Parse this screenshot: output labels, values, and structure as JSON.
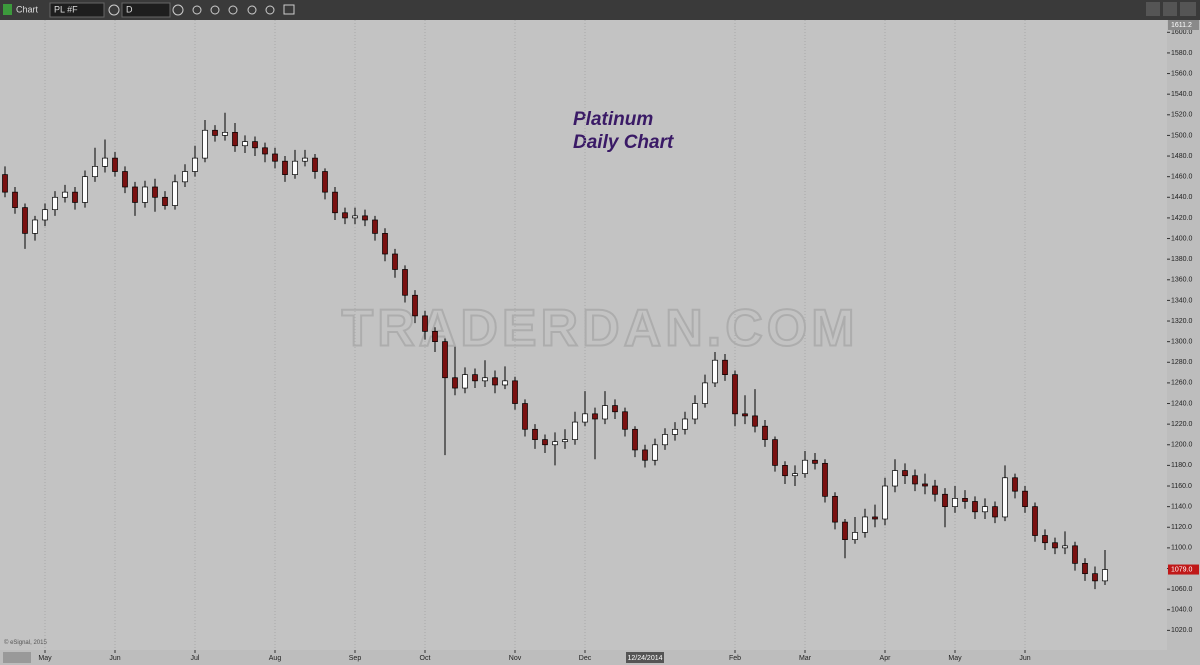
{
  "toolbar": {
    "window_title": "Chart",
    "symbol": "PL #F",
    "interval": "D"
  },
  "chart_data": {
    "type": "candlestick",
    "title": "Platinum",
    "subtitle": "Daily Chart",
    "watermark": "TRADERDAN.COM",
    "copyright": "© eSignal, 2015",
    "cursor_label": "12/24/2014",
    "top_label": "1611.2",
    "last_label": "1079.0",
    "up_color": "#ffffff",
    "down_color": "#7a1010",
    "grid": "x",
    "ylim": [
      1000,
      1610
    ],
    "yticks": [
      {
        "value": 1020,
        "label": "1020.0"
      },
      {
        "value": 1040,
        "label": "1040.0"
      },
      {
        "value": 1060,
        "label": "1060.0"
      },
      {
        "value": 1080,
        "label": "1080.0"
      },
      {
        "value": 1100,
        "label": "1100.0"
      },
      {
        "value": 1120,
        "label": "1120.0"
      },
      {
        "value": 1140,
        "label": "1140.0"
      },
      {
        "value": 1160,
        "label": "1160.0"
      },
      {
        "value": 1180,
        "label": "1180.0"
      },
      {
        "value": 1200,
        "label": "1200.0"
      },
      {
        "value": 1220,
        "label": "1220.0"
      },
      {
        "value": 1240,
        "label": "1240.0"
      },
      {
        "value": 1260,
        "label": "1260.0"
      },
      {
        "value": 1280,
        "label": "1280.0"
      },
      {
        "value": 1300,
        "label": "1300.0"
      },
      {
        "value": 1320,
        "label": "1320.0"
      },
      {
        "value": 1340,
        "label": "1340.0"
      },
      {
        "value": 1360,
        "label": "1360.0"
      },
      {
        "value": 1380,
        "label": "1380.0"
      },
      {
        "value": 1400,
        "label": "1400.0"
      },
      {
        "value": 1420,
        "label": "1420.0"
      },
      {
        "value": 1440,
        "label": "1440.0"
      },
      {
        "value": 1460,
        "label": "1460.0"
      },
      {
        "value": 1480,
        "label": "1480.0"
      },
      {
        "value": 1500,
        "label": "1500.0"
      },
      {
        "value": 1520,
        "label": "1520.0"
      },
      {
        "value": 1540,
        "label": "1540.0"
      },
      {
        "value": 1560,
        "label": "1560.0"
      },
      {
        "value": 1580,
        "label": "1580.0"
      },
      {
        "value": 1600,
        "label": "1600.0"
      }
    ],
    "xticks": [
      {
        "value": 4,
        "label": "May"
      },
      {
        "value": 11,
        "label": "Jun"
      },
      {
        "value": 19,
        "label": "Jul"
      },
      {
        "value": 27,
        "label": "Aug"
      },
      {
        "value": 35,
        "label": "Sep"
      },
      {
        "value": 42,
        "label": "Oct"
      },
      {
        "value": 51,
        "label": "Nov"
      },
      {
        "value": 58,
        "label": "Dec"
      },
      {
        "value": 73,
        "label": "Feb"
      },
      {
        "value": 80,
        "label": "Mar"
      },
      {
        "value": 88,
        "label": "Apr"
      },
      {
        "value": 95,
        "label": "May"
      },
      {
        "value": 102,
        "label": "Jun"
      }
    ],
    "open": [
      1462,
      1445,
      1430,
      1405,
      1418,
      1428,
      1440,
      1445,
      1435,
      1460,
      1470,
      1478,
      1465,
      1450,
      1435,
      1450,
      1440,
      1432,
      1455,
      1465,
      1478,
      1505,
      1500,
      1503,
      1490,
      1494,
      1488,
      1482,
      1475,
      1462,
      1475,
      1478,
      1465,
      1445,
      1425,
      1420,
      1422,
      1418,
      1405,
      1385,
      1370,
      1345,
      1325,
      1310,
      1300,
      1265,
      1255,
      1268,
      1262,
      1265,
      1258,
      1262,
      1240,
      1215,
      1205,
      1200,
      1203,
      1205,
      1222,
      1230,
      1225,
      1238,
      1232,
      1215,
      1195,
      1185,
      1200,
      1210,
      1215,
      1225,
      1240,
      1260,
      1282,
      1268,
      1230,
      1228,
      1218,
      1205,
      1180,
      1170,
      1172,
      1185,
      1182,
      1150,
      1125,
      1108,
      1115,
      1130,
      1128,
      1160,
      1175,
      1170,
      1162,
      1160,
      1152,
      1140,
      1148,
      1145,
      1135,
      1140,
      1130,
      1168,
      1155,
      1140,
      1112,
      1105,
      1100,
      1102,
      1085,
      1075,
      1068
    ],
    "high": [
      1470,
      1450,
      1434,
      1422,
      1434,
      1446,
      1452,
      1450,
      1466,
      1488,
      1496,
      1484,
      1470,
      1455,
      1456,
      1458,
      1446,
      1462,
      1472,
      1490,
      1515,
      1510,
      1522,
      1512,
      1500,
      1499,
      1493,
      1488,
      1480,
      1486,
      1486,
      1482,
      1468,
      1450,
      1430,
      1430,
      1428,
      1422,
      1410,
      1390,
      1374,
      1350,
      1330,
      1314,
      1303,
      1295,
      1275,
      1274,
      1282,
      1272,
      1276,
      1266,
      1244,
      1220,
      1210,
      1212,
      1215,
      1232,
      1252,
      1236,
      1252,
      1244,
      1236,
      1218,
      1200,
      1206,
      1216,
      1222,
      1232,
      1248,
      1268,
      1290,
      1288,
      1272,
      1248,
      1254,
      1224,
      1208,
      1184,
      1180,
      1194,
      1192,
      1186,
      1154,
      1128,
      1130,
      1138,
      1142,
      1168,
      1186,
      1182,
      1176,
      1172,
      1166,
      1158,
      1160,
      1156,
      1150,
      1148,
      1145,
      1180,
      1172,
      1160,
      1144,
      1118,
      1110,
      1116,
      1106,
      1090,
      1082,
      1098
    ],
    "low": [
      1440,
      1424,
      1390,
      1398,
      1412,
      1422,
      1435,
      1428,
      1430,
      1455,
      1464,
      1460,
      1444,
      1422,
      1430,
      1426,
      1428,
      1428,
      1450,
      1460,
      1474,
      1494,
      1495,
      1484,
      1483,
      1480,
      1474,
      1468,
      1455,
      1458,
      1470,
      1458,
      1438,
      1418,
      1414,
      1414,
      1412,
      1398,
      1378,
      1362,
      1338,
      1318,
      1302,
      1290,
      1190,
      1248,
      1250,
      1255,
      1256,
      1250,
      1254,
      1234,
      1208,
      1196,
      1192,
      1180,
      1196,
      1200,
      1218,
      1186,
      1220,
      1225,
      1208,
      1188,
      1178,
      1180,
      1195,
      1204,
      1210,
      1220,
      1236,
      1256,
      1262,
      1218,
      1220,
      1212,
      1198,
      1174,
      1162,
      1160,
      1168,
      1176,
      1144,
      1118,
      1090,
      1104,
      1110,
      1120,
      1122,
      1154,
      1162,
      1155,
      1152,
      1145,
      1120,
      1134,
      1138,
      1128,
      1128,
      1124,
      1126,
      1148,
      1134,
      1106,
      1098,
      1094,
      1094,
      1078,
      1068,
      1060,
      1064
    ],
    "close": [
      1445,
      1430,
      1405,
      1418,
      1428,
      1440,
      1445,
      1435,
      1460,
      1470,
      1478,
      1465,
      1450,
      1435,
      1450,
      1440,
      1432,
      1455,
      1465,
      1478,
      1505,
      1500,
      1503,
      1490,
      1494,
      1488,
      1482,
      1475,
      1462,
      1475,
      1478,
      1465,
      1445,
      1425,
      1420,
      1422,
      1418,
      1405,
      1385,
      1370,
      1345,
      1325,
      1310,
      1300,
      1265,
      1255,
      1268,
      1262,
      1265,
      1258,
      1262,
      1240,
      1215,
      1205,
      1200,
      1203,
      1205,
      1222,
      1230,
      1225,
      1238,
      1232,
      1215,
      1195,
      1185,
      1200,
      1210,
      1215,
      1225,
      1240,
      1260,
      1282,
      1268,
      1230,
      1228,
      1218,
      1205,
      1180,
      1170,
      1172,
      1185,
      1182,
      1150,
      1125,
      1108,
      1115,
      1130,
      1128,
      1160,
      1175,
      1170,
      1162,
      1160,
      1152,
      1140,
      1148,
      1145,
      1135,
      1140,
      1130,
      1168,
      1155,
      1140,
      1112,
      1105,
      1100,
      1102,
      1085,
      1075,
      1068,
      1079
    ]
  }
}
